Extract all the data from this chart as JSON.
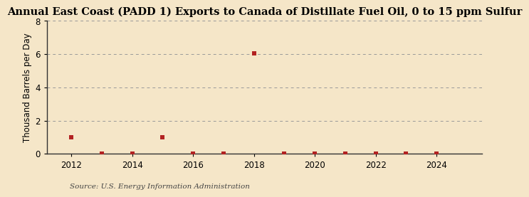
{
  "title": "Annual East Coast (PADD 1) Exports to Canada of Distillate Fuel Oil, 0 to 15 ppm Sulfur",
  "ylabel": "Thousand Barrels per Day",
  "source": "Source: U.S. Energy Information Administration",
  "years": [
    2012,
    2013,
    2014,
    2015,
    2016,
    2017,
    2018,
    2019,
    2020,
    2021,
    2022,
    2023,
    2024
  ],
  "values": [
    1.0,
    0.01,
    0.01,
    1.0,
    0.01,
    0.01,
    6.03,
    0.01,
    0.01,
    0.01,
    0.01,
    0.01,
    0.01
  ],
  "marker_color": "#b22222",
  "marker_size": 5,
  "background_color": "#f5e6c8",
  "grid_color": "#999999",
  "xlim": [
    2011.2,
    2025.5
  ],
  "ylim": [
    0,
    8
  ],
  "yticks": [
    0,
    2,
    4,
    6,
    8
  ],
  "xticks": [
    2012,
    2014,
    2016,
    2018,
    2020,
    2022,
    2024
  ],
  "title_fontsize": 10.5,
  "ylabel_fontsize": 8.5,
  "tick_fontsize": 8.5,
  "source_fontsize": 7.5
}
